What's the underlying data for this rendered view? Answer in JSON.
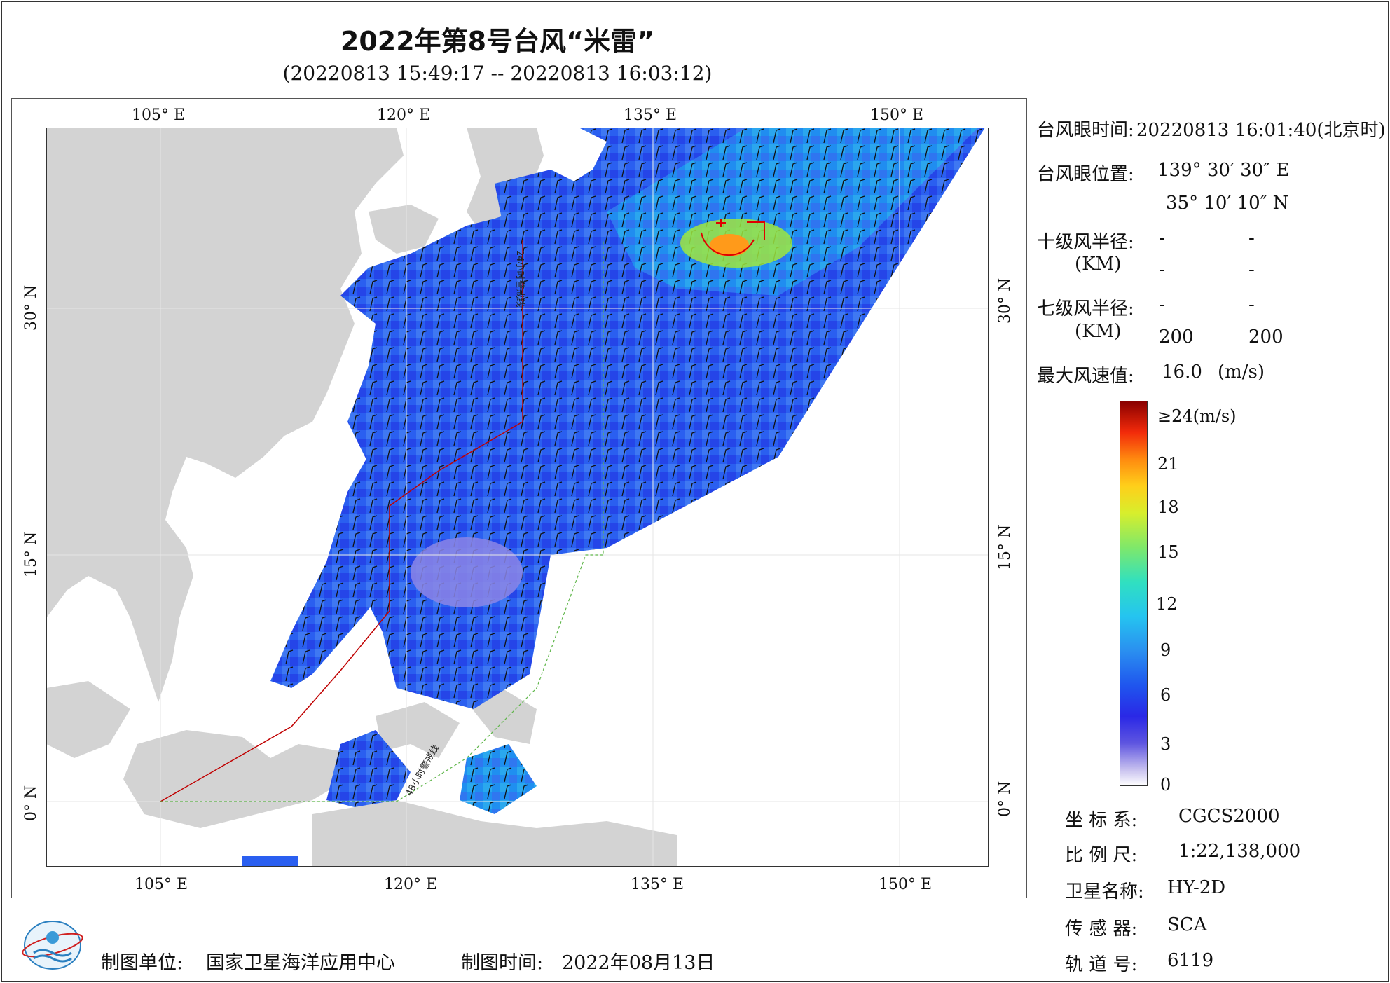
{
  "title": "2022年第8号台风“米雷”",
  "subtitle": "(20220813 15:49:17 -- 20220813 16:03:12)",
  "axes": {
    "lon_labels": [
      "105° E",
      "120° E",
      "135° E",
      "150° E"
    ],
    "lat_labels": [
      "30° N",
      "15° N",
      "0° N"
    ]
  },
  "route_labels": [
    "24小时警戒线",
    "48小时警戒线"
  ],
  "info": {
    "eye_time_label": "台风眼时间:",
    "eye_time_value": "20220813 16:01:40(北京时)",
    "eye_pos_label": "台风眼位置:",
    "eye_lon": "139° 30′ 30″ E",
    "eye_lat": "35° 10′ 10″ N",
    "r10_label": "十级风半径:",
    "r10_unit": "(KM)",
    "r10_values": [
      "-",
      "-",
      "-",
      "-"
    ],
    "r7_label": "七级风半径:",
    "r7_unit": "(KM)",
    "r7_values": [
      "-",
      "-",
      "200",
      "200"
    ],
    "max_wind_label": "最大风速值:",
    "max_wind_value": "16.0",
    "max_wind_unit": "(m/s)"
  },
  "legend": {
    "ticks": [
      "≥24(m/s)",
      "21",
      "18",
      "15",
      "12",
      "9",
      "6",
      "3",
      "0"
    ],
    "colors": [
      "#8a0000",
      "#f22a0a",
      "#ff8a0f",
      "#ffcf1a",
      "#7fe86a",
      "#25c4f0",
      "#1f55ee",
      "#2a28e6",
      "#ffffff"
    ]
  },
  "meta": {
    "crs_label": "坐 标 系:",
    "crs_value": "CGCS2000",
    "scale_label": "比 例 尺:",
    "scale_value": "1:22,138,000",
    "sat_label": "卫星名称:",
    "sat_value": "HY-2D",
    "sensor_label": "传 感 器:",
    "sensor_value": "SCA",
    "orbit_label": "轨 道 号:",
    "orbit_value": "6119"
  },
  "footer": {
    "org_label": "制图单位:",
    "org_value": "国家卫星海洋应用中心",
    "date_label": "制图时间:",
    "date_value": "2022年08月13日"
  },
  "colors": {
    "land": "#d3d3d3",
    "sea": "#ffffff",
    "warn24": "#c00000",
    "warn48": "#5fb64a",
    "eye_marker": "#e00000"
  }
}
